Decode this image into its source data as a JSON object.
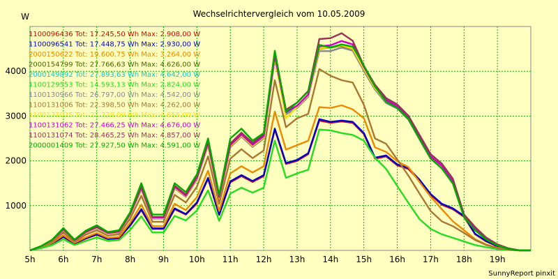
{
  "chart_data": {
    "type": "line",
    "title": "Wechselrichtervergleich vom 10.05.2009",
    "ylabel": "W",
    "xlabel": "",
    "footer": "SunnyReport pinxit",
    "x": [
      "05:00",
      "05:20",
      "05:40",
      "06:00",
      "06:20",
      "06:40",
      "07:00",
      "07:20",
      "07:40",
      "08:00",
      "08:20",
      "08:40",
      "09:00",
      "09:20",
      "09:40",
      "10:00",
      "10:20",
      "10:40",
      "11:00",
      "11:20",
      "11:40",
      "12:00",
      "12:20",
      "12:40",
      "13:00",
      "13:20",
      "13:40",
      "14:00",
      "14:20",
      "14:40",
      "15:00",
      "15:20",
      "15:40",
      "16:00",
      "16:20",
      "16:40",
      "17:00",
      "17:20",
      "17:40",
      "18:00",
      "18:20",
      "18:40",
      "19:00",
      "19:20",
      "19:40",
      "20:00"
    ],
    "x_ticks": [
      {
        "x": "05:00",
        "label": "5h"
      },
      {
        "x": "06:00",
        "label": "6h"
      },
      {
        "x": "07:00",
        "label": "7h"
      },
      {
        "x": "08:00",
        "label": "8h"
      },
      {
        "x": "09:00",
        "label": "9h"
      },
      {
        "x": "10:00",
        "label": "10h"
      },
      {
        "x": "11:00",
        "label": "11h"
      },
      {
        "x": "12:00",
        "label": "12h"
      },
      {
        "x": "13:00",
        "label": "13h"
      },
      {
        "x": "14:00",
        "label": "14h"
      },
      {
        "x": "15:00",
        "label": "15h"
      },
      {
        "x": "16:00",
        "label": "16h"
      },
      {
        "x": "17:00",
        "label": "17h"
      },
      {
        "x": "18:00",
        "label": "18h"
      },
      {
        "x": "19:00",
        "label": "19h"
      }
    ],
    "y_ticks": [
      1000,
      2000,
      3000,
      4000
    ],
    "ylim": [
      0,
      5000
    ],
    "grid": true,
    "legend_position": "top-left",
    "series": [
      {
        "name": "1100096436 Tot: 17.245,50 Wh Max: 2.908,00 W",
        "color": "#dd0000",
        "values": [
          0,
          60,
          150,
          300,
          150,
          260,
          350,
          250,
          270,
          550,
          900,
          480,
          480,
          920,
          800,
          1050,
          1600,
          790,
          1520,
          1660,
          1530,
          1660,
          2700,
          1930,
          2000,
          2150,
          2900,
          2850,
          2880,
          2850,
          2600,
          2050,
          2100,
          1900,
          1820,
          1560,
          1240,
          1020,
          920,
          750,
          360,
          200,
          90,
          30,
          0,
          0
        ]
      },
      {
        "name": "1100096541 Tot: 17.448,75 Wh Max: 2.930,00 W",
        "color": "#0000cc",
        "values": [
          0,
          65,
          160,
          310,
          160,
          270,
          360,
          260,
          280,
          560,
          920,
          490,
          490,
          940,
          810,
          1070,
          1620,
          800,
          1540,
          1680,
          1550,
          1680,
          2720,
          1950,
          2020,
          2170,
          2930,
          2870,
          2900,
          2870,
          2620,
          2070,
          2120,
          1920,
          1840,
          1580,
          1260,
          1040,
          940,
          770,
          370,
          210,
          95,
          32,
          0,
          0
        ]
      },
      {
        "name": "2000150622 Tot: 19.600,75 Wh Max: 3.264,00 W",
        "color": "#ee8800",
        "values": [
          0,
          70,
          170,
          340,
          170,
          290,
          390,
          280,
          300,
          620,
          1020,
          540,
          540,
          1040,
          900,
          1190,
          1780,
          880,
          1720,
          1880,
          1740,
          1880,
          3100,
          2250,
          2350,
          2450,
          3200,
          3180,
          3240,
          3150,
          2950,
          2300,
          2200,
          1990,
          1860,
          1530,
          1200,
          920,
          650,
          450,
          250,
          130,
          60,
          20,
          0,
          0
        ]
      },
      {
        "name": "2000154799 Tot: 27.766,63 Wh Max: 4.626,00 W",
        "color": "#446600",
        "values": [
          0,
          90,
          220,
          460,
          220,
          400,
          510,
          380,
          410,
          800,
          1380,
          720,
          720,
          1400,
          1210,
          1600,
          2370,
          1170,
          2320,
          2560,
          2330,
          2520,
          4300,
          3060,
          3200,
          3450,
          4500,
          4530,
          4570,
          4500,
          4050,
          3620,
          3320,
          3190,
          2940,
          2500,
          2070,
          1860,
          1520,
          760,
          480,
          260,
          120,
          40,
          0,
          0
        ]
      },
      {
        "name": "2000149892 Tot: 27.893,63 Wh Max: 4.642,00 W",
        "color": "#00cccc",
        "values": [
          0,
          92,
          225,
          465,
          222,
          405,
          515,
          385,
          415,
          805,
          1385,
          725,
          725,
          1405,
          1215,
          1605,
          2380,
          1180,
          2330,
          2570,
          2340,
          2530,
          4320,
          3070,
          3210,
          3460,
          4520,
          4540,
          4590,
          4510,
          4060,
          3630,
          3330,
          3200,
          2950,
          2510,
          2080,
          1870,
          1530,
          770,
          490,
          270,
          125,
          42,
          0,
          0
        ]
      },
      {
        "name": "1100129553 Tot: 14.593,13 Wh Max: 2.824,00 W",
        "color": "#22dd22",
        "values": [
          0,
          50,
          120,
          250,
          120,
          210,
          290,
          210,
          230,
          460,
          760,
          400,
          400,
          770,
          670,
          890,
          1340,
          660,
          1270,
          1400,
          1290,
          1400,
          2450,
          1620,
          1720,
          1800,
          2700,
          2680,
          2620,
          2580,
          2450,
          2070,
          1820,
          1440,
          1060,
          700,
          480,
          360,
          280,
          200,
          120,
          70,
          30,
          10,
          0,
          0
        ]
      },
      {
        "name": "1100130966 Tot: 26.797,00 Wh Max: 4.542,00 W",
        "color": "#888888",
        "values": [
          0,
          90,
          215,
          450,
          215,
          395,
          500,
          375,
          400,
          790,
          1360,
          710,
          710,
          1385,
          1195,
          1580,
          2350,
          1160,
          2300,
          2540,
          2310,
          2500,
          4270,
          3040,
          3180,
          3430,
          4450,
          4450,
          4530,
          4460,
          4010,
          3590,
          3290,
          3170,
          2920,
          2480,
          2050,
          1840,
          1500,
          750,
          470,
          250,
          115,
          38,
          0,
          0
        ]
      },
      {
        "name": "1100131006 Tot: 22.398,50 Wh Max: 4.262,00 W",
        "color": "#aa7733",
        "values": [
          0,
          80,
          190,
          400,
          190,
          350,
          450,
          330,
          360,
          710,
          1220,
          640,
          640,
          1240,
          1070,
          1420,
          2100,
          1040,
          2050,
          2260,
          2060,
          2230,
          3800,
          2750,
          2950,
          3050,
          4050,
          3900,
          3800,
          3750,
          3250,
          2500,
          2380,
          2030,
          1670,
          1270,
          880,
          650,
          540,
          390,
          230,
          120,
          55,
          18,
          0,
          0
        ]
      },
      {
        "name": "1100131025 Tot: 27.328,00 Wh Max: 4.655,00 W",
        "color": "#ffdd00",
        "values": [
          0,
          91,
          222,
          462,
          220,
          402,
          512,
          382,
          412,
          802,
          1382,
          722,
          722,
          1402,
          1212,
          1602,
          2375,
          1175,
          2325,
          2565,
          2335,
          2525,
          4310,
          2950,
          3205,
          3455,
          4510,
          4535,
          4580,
          4505,
          4055,
          3625,
          3325,
          3195,
          2945,
          2505,
          2075,
          1865,
          1525,
          765,
          485,
          265,
          122,
          41,
          0,
          0
        ]
      },
      {
        "name": "1100131062 Tot: 27.466,25 Wh Max: 4.676,00 W",
        "color": "#cc00cc",
        "values": [
          0,
          93,
          228,
          470,
          225,
          410,
          520,
          390,
          420,
          815,
          1400,
          735,
          735,
          1420,
          1225,
          1620,
          2400,
          1190,
          2350,
          2590,
          2360,
          2550,
          4350,
          3090,
          3230,
          3480,
          4560,
          4580,
          4676,
          4600,
          4100,
          3660,
          3360,
          3220,
          2970,
          2530,
          2100,
          1890,
          1550,
          780,
          500,
          275,
          128,
          43,
          0,
          0
        ]
      },
      {
        "name": "1100131074 Tot: 28.465,25 Wh Max: 4.857,00 W",
        "color": "#993355",
        "values": [
          0,
          95,
          232,
          480,
          230,
          420,
          530,
          398,
          430,
          830,
          1420,
          748,
          748,
          1445,
          1248,
          1650,
          2440,
          1210,
          2390,
          2630,
          2400,
          2590,
          4420,
          3140,
          3300,
          3560,
          4720,
          4740,
          4850,
          4680,
          4120,
          3700,
          3400,
          3260,
          3010,
          2580,
          2150,
          1940,
          1600,
          800,
          520,
          285,
          135,
          45,
          0,
          0
        ]
      },
      {
        "name": "2000001409 Tot: 27.927,50 Wh Max: 4.591,00 W",
        "color": "#00aa00",
        "values": [
          0,
          97,
          240,
          500,
          240,
          440,
          560,
          410,
          450,
          850,
          1500,
          800,
          800,
          1500,
          1300,
          1700,
          2500,
          1240,
          2500,
          2720,
          2450,
          2620,
          4460,
          3100,
          3300,
          3550,
          4591,
          4530,
          4600,
          4550,
          4130,
          3660,
          3320,
          3180,
          2940,
          2490,
          2050,
          1830,
          1490,
          740,
          450,
          240,
          110,
          35,
          0,
          0
        ]
      }
    ]
  }
}
